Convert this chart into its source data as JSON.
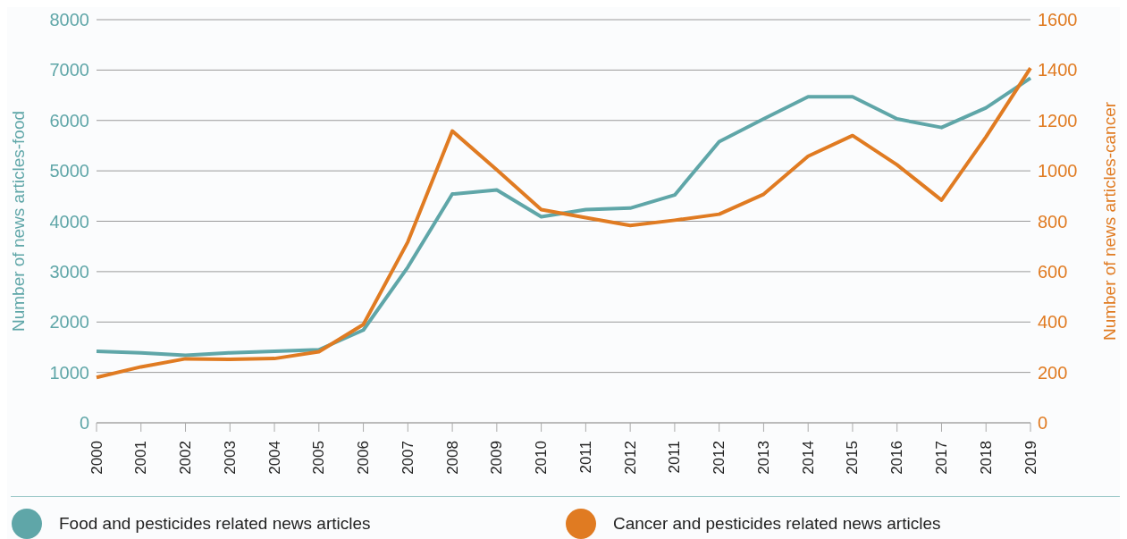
{
  "chart_data": {
    "type": "line",
    "ylabel": "Number of news articles-food",
    "y2label": "Number of news articles-cancer",
    "categories": [
      "2000",
      "2001",
      "2002",
      "2003",
      "2004",
      "2005",
      "2006",
      "2007",
      "2008",
      "2009",
      "2010",
      "2011",
      "2012",
      "2011",
      "2012",
      "2013",
      "2014",
      "2015",
      "2016",
      "2017",
      "2018",
      "2019"
    ],
    "series": [
      {
        "name": "Food and pesticides related news articles",
        "color": "#5fa6a8",
        "values": [
          1420,
          1390,
          1340,
          1390,
          1420,
          1450,
          1840,
          3090,
          4540,
          4620,
          4090,
          4230,
          4260,
          4520,
          5580,
          6030,
          6470,
          6470,
          6030,
          5860,
          6250,
          6840
        ]
      },
      {
        "name": "Cancer and pesticides related news articles",
        "color": "#e07b22",
        "axis": "y2",
        "values": [
          180,
          222,
          254,
          252,
          255,
          282,
          390,
          718,
          1158,
          1004,
          846,
          814,
          783,
          804,
          828,
          907,
          1058,
          1140,
          1024,
          884,
          1135,
          1408
        ]
      }
    ],
    "ylim": [
      0,
      8000
    ],
    "yticks": [
      0,
      1000,
      2000,
      3000,
      4000,
      5000,
      6000,
      7000,
      8000
    ],
    "y2lim": [
      0,
      1600
    ],
    "y2ticks": [
      0,
      200,
      400,
      600,
      800,
      1000,
      1200,
      1400,
      1600
    ],
    "grid": "y",
    "legend": "bottom",
    "marker": "none",
    "line_style": "solid"
  }
}
